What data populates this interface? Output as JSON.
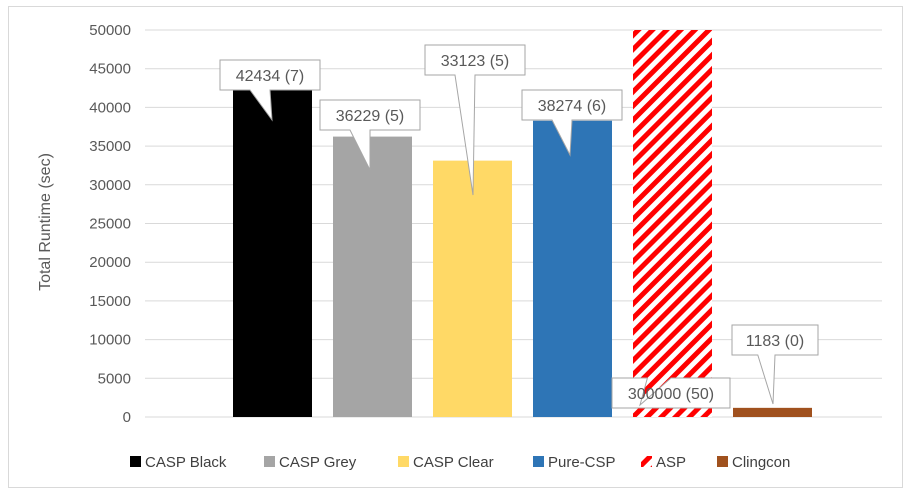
{
  "chart_data": {
    "type": "bar",
    "ylabel": "Total Runtime (sec)",
    "xlabel": "",
    "ylim": [
      0,
      50000
    ],
    "yticks": [
      "0",
      "5000",
      "10000",
      "15000",
      "20000",
      "25000",
      "30000",
      "35000",
      "40000",
      "45000",
      "50000"
    ],
    "grid": true,
    "legend_position": "bottom",
    "series": [
      {
        "name": "CASP Black",
        "value": 42434,
        "label": "42434 (7)",
        "color": "#000000",
        "pattern": "solid"
      },
      {
        "name": "CASP Grey",
        "value": 36229,
        "label": "36229 (5)",
        "color": "#a5a5a5",
        "pattern": "solid"
      },
      {
        "name": "CASP Clear",
        "value": 33123,
        "label": "33123 (5)",
        "color": "#ffd966",
        "pattern": "solid"
      },
      {
        "name": "Pure-CSP",
        "value": 38274,
        "label": "38274 (6)",
        "color": "#2e75b6",
        "pattern": "solid"
      },
      {
        "name": "ASP",
        "value": 300000,
        "label": "300000 (50)",
        "color": "#ff0000",
        "pattern": "diagonal-stripes"
      },
      {
        "name": "Clingcon",
        "value": 1183,
        "label": "1183 (0)",
        "color": "#a0511e",
        "pattern": "solid"
      }
    ]
  }
}
